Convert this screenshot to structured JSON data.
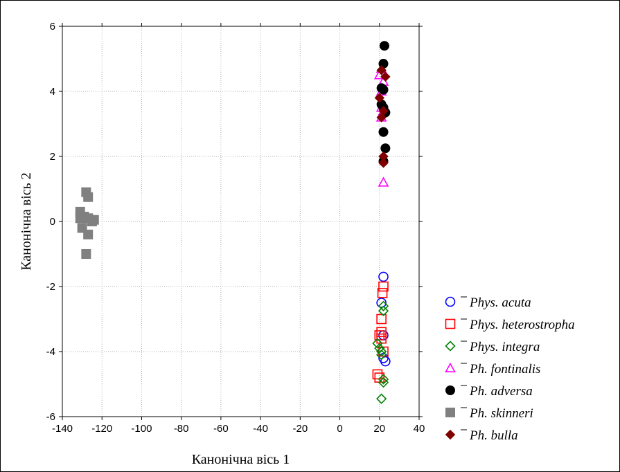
{
  "chart_data": {
    "type": "scatter",
    "title": "",
    "xlabel": "Канонічна вісь 1",
    "ylabel": "Канонічна вісь 2",
    "xlim": [
      -140,
      40
    ],
    "ylim": [
      -6,
      6
    ],
    "xticks": [
      -140,
      -120,
      -100,
      -80,
      -60,
      -40,
      -20,
      0,
      20,
      40
    ],
    "yticks": [
      -6,
      -4,
      -2,
      0,
      2,
      4,
      6
    ],
    "grid": true,
    "legend_position": "right-bottom",
    "series": [
      {
        "name": "Phys. acuta",
        "marker": "circle-open",
        "color": "#0000ff",
        "points": [
          [
            22,
            -1.7
          ],
          [
            21,
            -2.5
          ],
          [
            22,
            -4.2
          ],
          [
            23,
            -4.3
          ],
          [
            22,
            -3.5
          ]
        ]
      },
      {
        "name": "Phys. heterostropha",
        "marker": "square-open",
        "color": "#ff0000",
        "points": [
          [
            22,
            -2.0
          ],
          [
            21.5,
            -2.2
          ],
          [
            21,
            -3.0
          ],
          [
            21,
            -3.4
          ],
          [
            20,
            -3.5
          ],
          [
            21,
            -3.6
          ],
          [
            22,
            -4.0
          ],
          [
            19,
            -4.7
          ],
          [
            20,
            -4.8
          ]
        ]
      },
      {
        "name": "Phys. integra",
        "marker": "diamond-open",
        "color": "#008000",
        "points": [
          [
            22,
            -2.6
          ],
          [
            22,
            -2.75
          ],
          [
            19,
            -3.75
          ],
          [
            20,
            -3.9
          ],
          [
            21,
            -4.0
          ],
          [
            21,
            -4.1
          ],
          [
            22,
            -4.85
          ],
          [
            22,
            -4.95
          ],
          [
            21,
            -5.45
          ]
        ]
      },
      {
        "name": "Ph. fontinalis",
        "marker": "triangle-open",
        "color": "#ff00ff",
        "points": [
          [
            22,
            1.2
          ],
          [
            21,
            4.7
          ],
          [
            20,
            4.5
          ],
          [
            22,
            4.3
          ],
          [
            21,
            4.0
          ],
          [
            21,
            3.5
          ],
          [
            22,
            3.4
          ],
          [
            21,
            3.2
          ]
        ]
      },
      {
        "name": "Ph. adversa",
        "marker": "circle-filled",
        "color": "#000000",
        "points": [
          [
            22.5,
            5.4
          ],
          [
            22,
            4.85
          ],
          [
            21,
            4.1
          ],
          [
            22,
            4.05
          ],
          [
            21,
            3.6
          ],
          [
            22,
            3.5
          ],
          [
            23,
            3.35
          ],
          [
            22,
            2.75
          ],
          [
            23,
            2.25
          ],
          [
            22,
            1.85
          ]
        ]
      },
      {
        "name": "Ph. skinneri",
        "marker": "square-filled",
        "color": "#808080",
        "points": [
          [
            -128,
            0.9
          ],
          [
            -127,
            0.75
          ],
          [
            -131,
            0.3
          ],
          [
            -129,
            0.15
          ],
          [
            -131,
            0.1
          ],
          [
            -127,
            0.1
          ],
          [
            -124,
            0.05
          ],
          [
            -125,
            0.0
          ],
          [
            -130,
            -0.2
          ],
          [
            -127,
            -0.4
          ],
          [
            -128,
            -1.0
          ]
        ]
      },
      {
        "name": "Ph. bulla",
        "marker": "diamond-filled",
        "color": "#800000",
        "points": [
          [
            21,
            4.65
          ],
          [
            23,
            4.45
          ],
          [
            20,
            3.8
          ],
          [
            22,
            3.4
          ],
          [
            21,
            3.2
          ],
          [
            22,
            2.0
          ],
          [
            22,
            1.8
          ]
        ]
      }
    ]
  }
}
